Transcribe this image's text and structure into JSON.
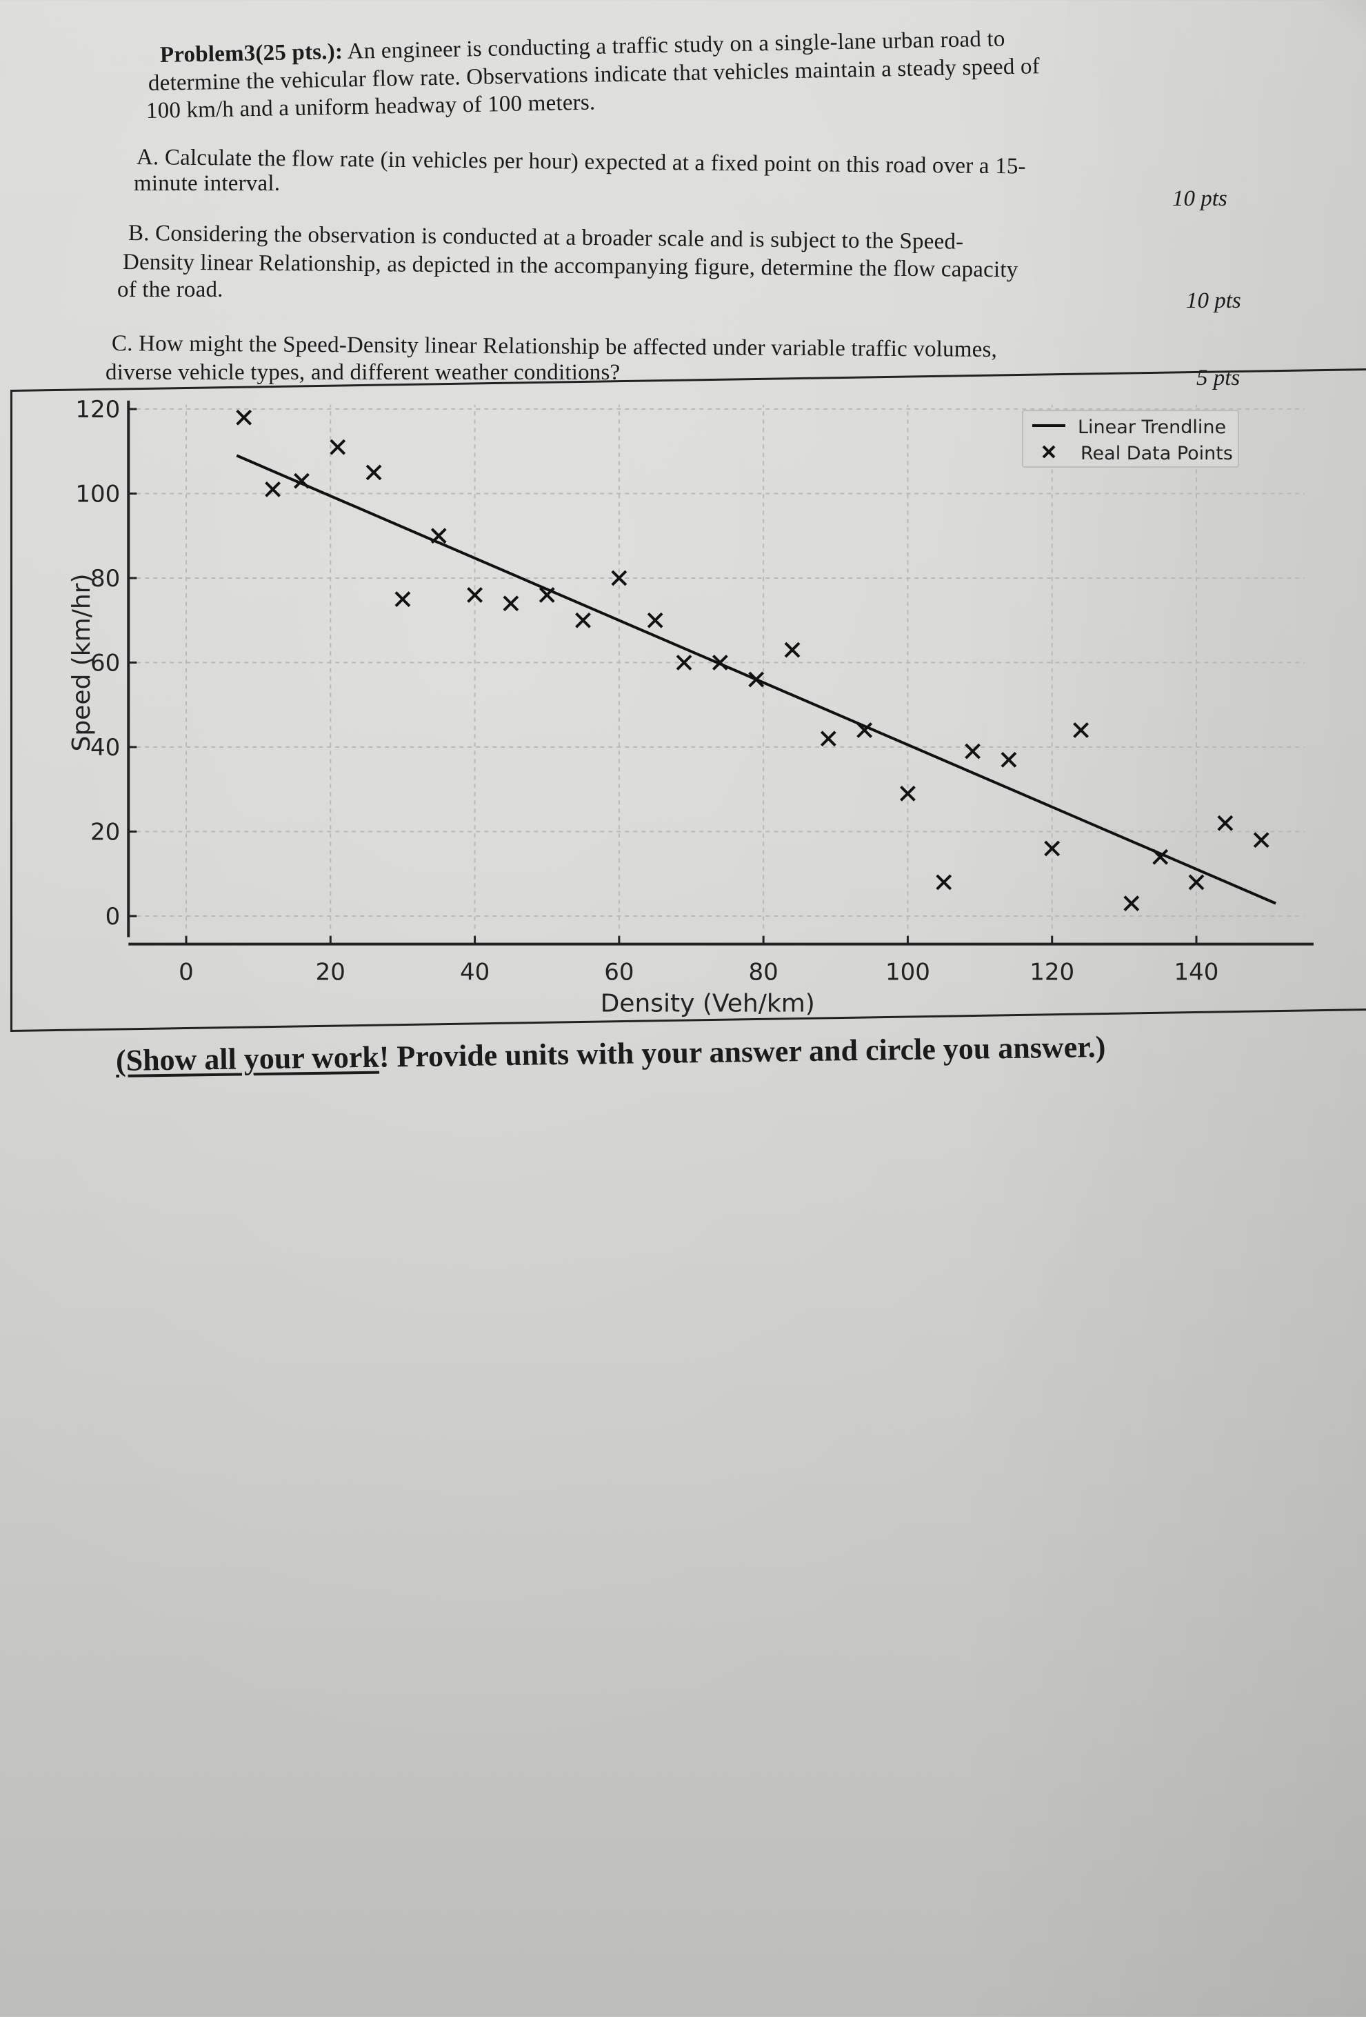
{
  "problem": {
    "heading": "Problem3(25 pts.):",
    "intro_lines": [
      " An engineer is conducting a traffic study on a single-lane urban road to",
      "determine the vehicular flow rate. Observations indicate that vehicles maintain a steady speed of",
      "100 km/h and a uniform headway of 100 meters."
    ],
    "parts": [
      {
        "lines": [
          "A. Calculate the flow rate (in vehicles per hour) expected at a fixed point on this road over a 15-",
          "minute interval."
        ],
        "points": "10 pts"
      },
      {
        "lines": [
          "B. Considering the observation is conducted at a broader scale and is subject to the Speed-",
          "Density linear Relationship, as depicted in the accompanying figure, determine the flow capacity",
          "of the road."
        ],
        "points": "10 pts"
      },
      {
        "lines": [
          "C. How might the Speed-Density linear Relationship be affected under variable traffic volumes,",
          "diverse vehicle types, and different weather conditions?"
        ],
        "points": "5 pts"
      }
    ]
  },
  "chart_data": {
    "type": "scatter",
    "title": "",
    "xlabel": "Density (Veh/km)",
    "ylabel": "Speed (km/hr)",
    "xlim": [
      -5,
      155
    ],
    "ylim": [
      -3,
      122
    ],
    "x_ticks": [
      0,
      20,
      40,
      60,
      80,
      100,
      120,
      140
    ],
    "y_ticks": [
      0,
      20,
      40,
      60,
      80,
      100,
      120
    ],
    "grid": true,
    "legend_position": "upper right",
    "legend": [
      "Linear Trendline",
      "Real Data Points"
    ],
    "series": [
      {
        "name": "Real Data Points",
        "marker": "x",
        "x": [
          8,
          12,
          16,
          21,
          26,
          30,
          35,
          40,
          45,
          50,
          55,
          60,
          65,
          69,
          74,
          79,
          84,
          89,
          94,
          100,
          105,
          109,
          114,
          120,
          124,
          131,
          135,
          140,
          144,
          149
        ],
        "y": [
          118,
          101,
          103,
          111,
          105,
          75,
          90,
          76,
          74,
          76,
          70,
          80,
          70,
          60,
          60,
          56,
          63,
          42,
          44,
          29,
          8,
          39,
          37,
          16,
          44,
          3,
          14,
          8,
          22,
          18
        ]
      },
      {
        "name": "Linear Trendline",
        "type": "line",
        "x": [
          7,
          151
        ],
        "y": [
          109,
          3
        ]
      }
    ]
  },
  "footer": {
    "underlined": "(Show all your work",
    "rest": "! Provide units with your answer and circle you answer.)"
  }
}
